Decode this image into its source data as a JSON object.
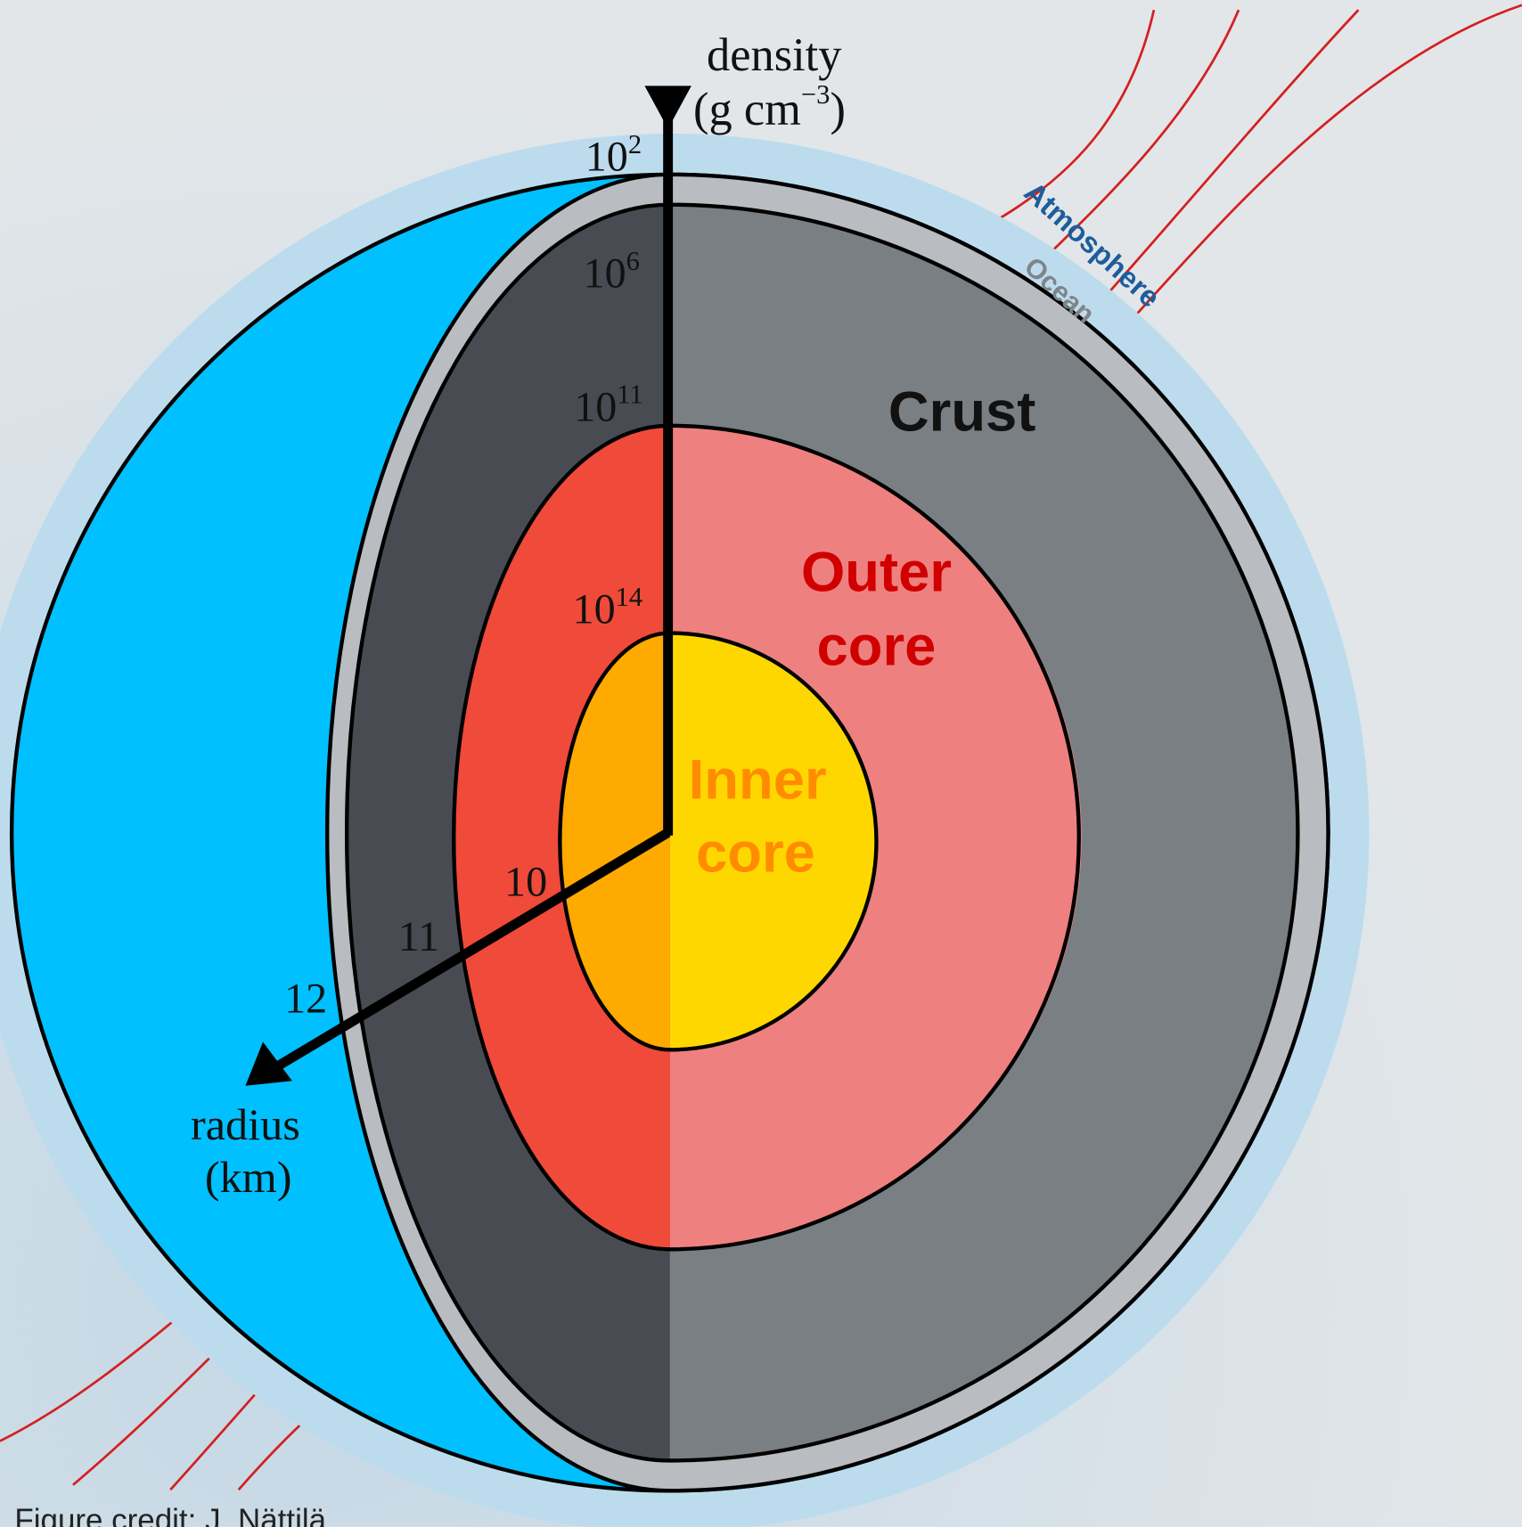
{
  "density_axis": {
    "label": "density",
    "unit": {
      "open": "(g cm",
      "exponent": "−3",
      "close": ")"
    },
    "ticks": [
      {
        "base": "10",
        "exponent": "2"
      },
      {
        "base": "10",
        "exponent": "6"
      },
      {
        "base": "10",
        "exponent": "11"
      },
      {
        "base": "10",
        "exponent": "14"
      }
    ]
  },
  "radius_axis": {
    "label": "radius",
    "unit": "(km)",
    "ticks": [
      "10",
      "11",
      "12"
    ]
  },
  "layers": {
    "atmosphere": "Atmosphere",
    "ocean": "Ocean",
    "crust": "Crust",
    "outer_core": [
      "Outer",
      "core"
    ],
    "inner_core": [
      "Inner",
      "core"
    ]
  },
  "credit": "Figure credit: J. Nättilä"
}
